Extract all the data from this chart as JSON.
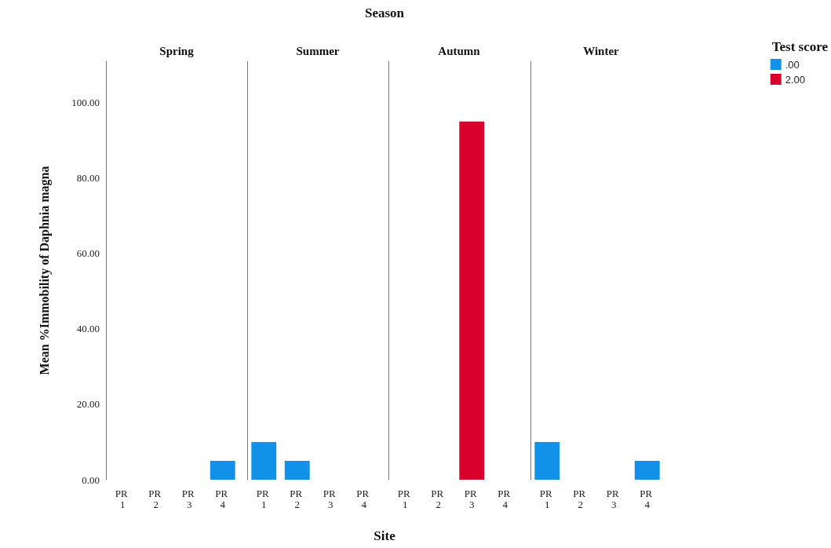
{
  "chart_data": [
    {
      "type": "bar",
      "title": "Spring",
      "ylabel": "Mean %Immobility of Daphnia magna",
      "annotations": [
        "Season",
        "Site"
      ],
      "legend": "top right",
      "legend_title": "Test score",
      "categories": [
        "PR 1",
        "PR 2",
        "PR 3",
        "PR 4"
      ],
      "stacked": true,
      "ylim": [
        0,
        111
      ],
      "yticks": [
        {
          "value": 0,
          "label": "0.00"
        },
        {
          "value": 20,
          "label": "20.00"
        },
        {
          "value": 40,
          "label": "40.00"
        },
        {
          "value": 60,
          "label": "60.00"
        },
        {
          "value": 80,
          "label": "80.00"
        },
        {
          "value": 100,
          "label": "100.00"
        }
      ],
      "series": [
        {
          "name": ".00",
          "color": "#1192e8",
          "values": [
            null,
            null,
            null,
            5
          ]
        },
        {
          "name": "2.00",
          "color": "#da002e",
          "values": [
            null,
            null,
            null,
            null
          ]
        }
      ]
    },
    {
      "type": "bar",
      "title": "Summer",
      "categories": [
        "PR 1",
        "PR 2",
        "PR 3",
        "PR 4"
      ],
      "stacked": true,
      "ylim": [
        0,
        111
      ],
      "tick_labels": "x",
      "series": [
        {
          "color": "#1192e8",
          "values": [
            10,
            5,
            null,
            null
          ]
        },
        {
          "color": "#da002e",
          "values": [
            null,
            null,
            null,
            null
          ]
        }
      ]
    },
    {
      "type": "bar",
      "title": "Autumn",
      "categories": [
        "PR 1",
        "PR 2",
        "PR 3",
        "PR 4"
      ],
      "stacked": true,
      "ylim": [
        0,
        111
      ],
      "tick_labels": "x",
      "series": [
        {
          "color": "#1192e8",
          "values": [
            null,
            null,
            null,
            null
          ]
        },
        {
          "color": "#da002e",
          "values": [
            null,
            null,
            95,
            null
          ]
        }
      ]
    },
    {
      "type": "bar",
      "title": "Winter",
      "categories": [
        "PR 1",
        "PR 2",
        "PR 3",
        "PR 4"
      ],
      "stacked": true,
      "ylim": [
        0,
        111
      ],
      "tick_labels": "x",
      "series": [
        {
          "color": "#1192e8",
          "values": [
            10,
            null,
            null,
            5
          ]
        },
        {
          "color": "#da002e",
          "values": [
            null,
            null,
            null,
            null
          ]
        }
      ]
    }
  ]
}
